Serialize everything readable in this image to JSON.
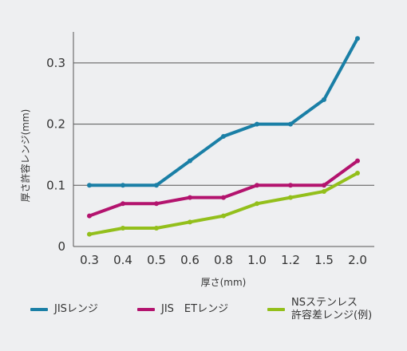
{
  "chart_data": {
    "type": "line",
    "categories": [
      "0.3",
      "0.4",
      "0.5",
      "0.6",
      "0.8",
      "1.0",
      "1.2",
      "1.5",
      "2.0"
    ],
    "xlabel": "厚さ(mm)",
    "ylabel": "厚さ許容レンジ(mm)",
    "ylim": [
      0,
      0.35
    ],
    "yticks": [
      0,
      0.1,
      0.2,
      0.3
    ],
    "ytick_labels": [
      "0",
      "0.1",
      "0.2",
      "0.3"
    ],
    "grid": "horizontal",
    "legend_position": "bottom",
    "series": [
      {
        "name": "JISレンジ",
        "color": "#1a7fa6",
        "values": [
          0.1,
          0.1,
          0.1,
          0.14,
          0.18,
          0.2,
          0.2,
          0.24,
          0.34
        ]
      },
      {
        "name": "JIS　ETレンジ",
        "color": "#b3136e",
        "values": [
          0.05,
          0.07,
          0.07,
          0.08,
          0.08,
          0.1,
          0.1,
          0.1,
          0.14
        ]
      },
      {
        "name": "NSステンレス\n許容差レンジ(例)",
        "color": "#93bf1b",
        "values": [
          0.02,
          0.03,
          0.03,
          0.04,
          0.05,
          0.07,
          0.08,
          0.09,
          0.12
        ]
      }
    ]
  }
}
